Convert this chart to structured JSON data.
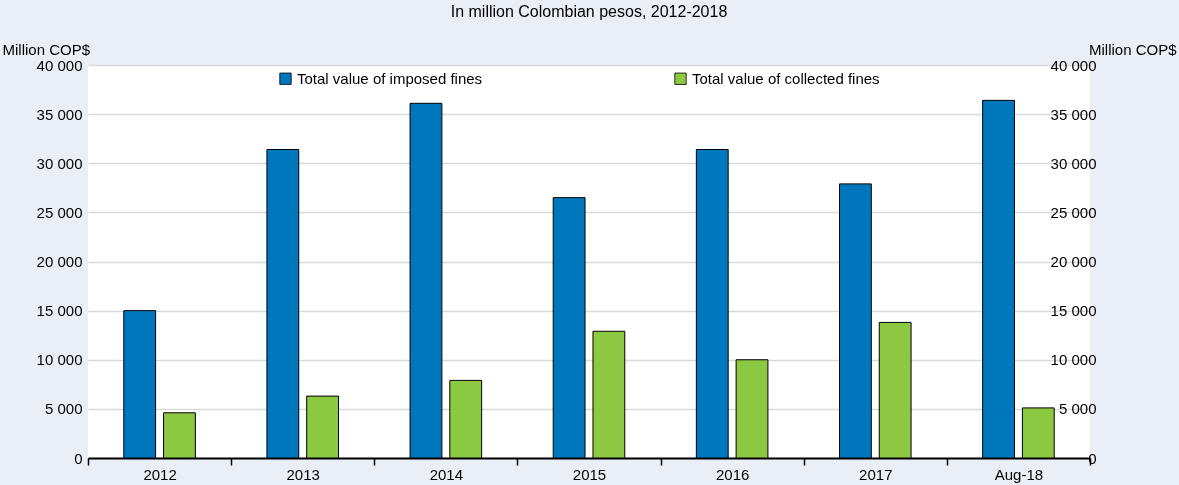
{
  "chart_data": {
    "type": "bar",
    "title": "In million Colombian pesos, 2012-2018",
    "ylabel": "Million COP$",
    "y2label": "Million COP$",
    "categories": [
      "2012",
      "2013",
      "2014",
      "2015",
      "2016",
      "2017",
      "Aug-18"
    ],
    "series": [
      {
        "name": "Total value of imposed fines",
        "color": "#0077bd",
        "values": [
          15000,
          31400,
          36100,
          26500,
          31400,
          27900,
          36400
        ]
      },
      {
        "name": "Total value of collected fines",
        "color": "#8cc841",
        "values": [
          4600,
          6300,
          7900,
          12900,
          10000,
          13800,
          5100
        ]
      }
    ],
    "ylim": [
      0,
      40000
    ],
    "yticks": [
      {
        "value": 0,
        "label": "0"
      },
      {
        "value": 5000,
        "label": "5 000"
      },
      {
        "value": 10000,
        "label": "10 000"
      },
      {
        "value": 15000,
        "label": "15 000"
      },
      {
        "value": 20000,
        "label": "20 000"
      },
      {
        "value": 25000,
        "label": "25 000"
      },
      {
        "value": 30000,
        "label": "30 000"
      },
      {
        "value": 35000,
        "label": "35 000"
      },
      {
        "value": 40000,
        "label": "40 000"
      }
    ],
    "y2lim": [
      0,
      40000
    ],
    "y2ticks": [
      {
        "value": 0,
        "label": "0"
      },
      {
        "value": 5000,
        "label": "5 000"
      },
      {
        "value": 10000,
        "label": "10 000"
      },
      {
        "value": 15000,
        "label": "15 000"
      },
      {
        "value": 20000,
        "label": "20 000"
      },
      {
        "value": 25000,
        "label": "25 000"
      },
      {
        "value": 30000,
        "label": "30 000"
      },
      {
        "value": 35000,
        "label": "35 000"
      },
      {
        "value": 40000,
        "label": "40 000"
      }
    ],
    "grid": "y",
    "legend": "top"
  }
}
